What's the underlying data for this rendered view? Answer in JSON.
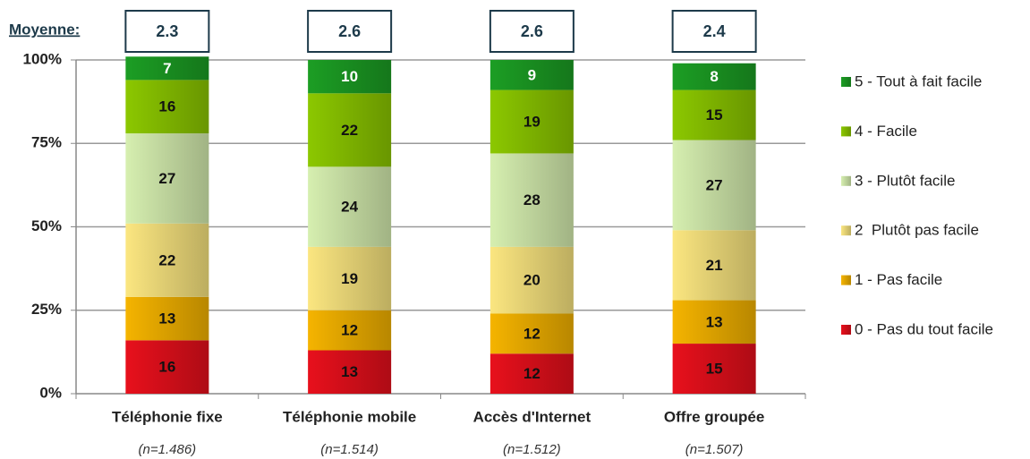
{
  "chart_data": {
    "type": "stacked_bar",
    "mean_label": "Moyenne:",
    "means": [
      2.3,
      2.6,
      2.6,
      2.4
    ],
    "categories": [
      "Téléphonie fixe",
      "Téléphonie mobile",
      "Accès d'Internet",
      "Offre groupée"
    ],
    "sample_sizes": [
      "(n=1.486)",
      "(n=1.514)",
      "(n=1.512)",
      "(n=1.507)"
    ],
    "series": [
      {
        "name": "0 - Pas du tout facile",
        "color": "#e8101c",
        "values": [
          16,
          13,
          12,
          15
        ]
      },
      {
        "name": "1 - Pas facile",
        "color": "#f5b400",
        "values": [
          13,
          12,
          12,
          13
        ]
      },
      {
        "name": "2  Plutôt pas facile",
        "color": "#fbe680",
        "values": [
          22,
          19,
          20,
          21
        ]
      },
      {
        "name": "3 - Plutôt facile",
        "color": "#d6efb0",
        "values": [
          27,
          24,
          28,
          27
        ]
      },
      {
        "name": "4 - Facile",
        "color": "#8cc800",
        "values": [
          16,
          22,
          19,
          15
        ]
      },
      {
        "name": "5 - Tout à fait facile",
        "color": "#1c9e24",
        "values": [
          7,
          10,
          9,
          8
        ]
      }
    ],
    "ylim": [
      0,
      100
    ],
    "yticks": [
      {
        "value": 0,
        "label": "0%"
      },
      {
        "value": 25,
        "label": "25%"
      },
      {
        "value": 50,
        "label": "50%"
      },
      {
        "value": 75,
        "label": "75%"
      },
      {
        "value": 100,
        "label": "100%"
      }
    ],
    "grid": true,
    "legend": "right"
  }
}
